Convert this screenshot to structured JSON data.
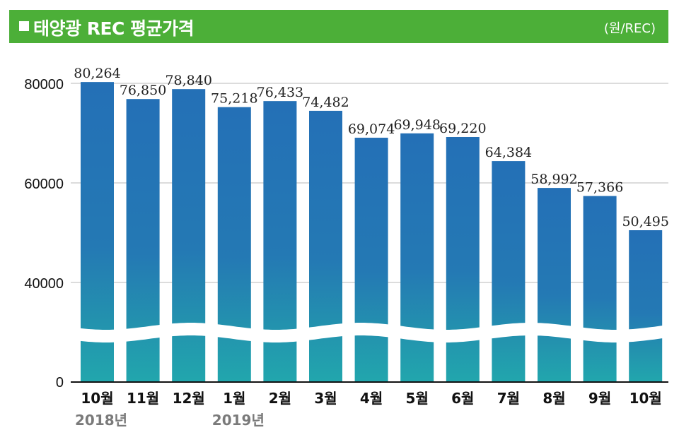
{
  "header": {
    "title": "태양광 REC 평균가격",
    "unit": "(원/REC)"
  },
  "colors": {
    "header_bg": "#4caf38",
    "bar_top": "#2470b6",
    "bar_mid": "#2390ae",
    "bar_bottom": "#22a6ad",
    "grid": "#b8b8b8",
    "value_label": "#222222",
    "year_label": "#7a7a7a"
  },
  "chart_data": {
    "type": "bar",
    "title": "태양광 REC 평균가격",
    "unit": "(원/REC)",
    "categories": [
      "10월",
      "11월",
      "12월",
      "1월",
      "2월",
      "3월",
      "4월",
      "5월",
      "6월",
      "7월",
      "8월",
      "9월",
      "10월"
    ],
    "values": [
      80264,
      76850,
      78840,
      75218,
      76433,
      74482,
      69074,
      69948,
      69220,
      64384,
      58992,
      57366,
      50495
    ],
    "value_labels": [
      "80,264",
      "76,850",
      "78,840",
      "75,218",
      "76,433",
      "74,482",
      "69,074",
      "69,948",
      "69,220",
      "64,384",
      "58,992",
      "57,366",
      "50,495"
    ],
    "year_labels": [
      {
        "category_index": 0,
        "text": "2018년"
      },
      {
        "category_index": 3,
        "text": "2019년"
      }
    ],
    "ylim": [
      0,
      80000
    ],
    "yticks": [
      0,
      40000,
      60000,
      80000
    ],
    "grid": true,
    "axis_break": true,
    "xlabel": "",
    "ylabel": ""
  }
}
